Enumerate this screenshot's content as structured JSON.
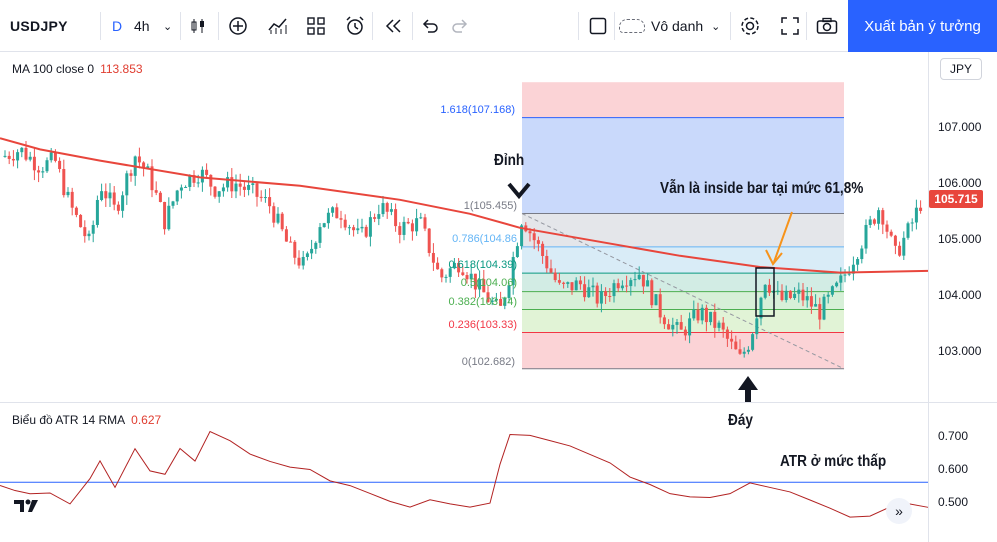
{
  "toolbar": {
    "symbol": "USDJPY",
    "interval_prefix": "D",
    "interval": "4h",
    "layout_name": "Vô danh",
    "publish_label": "Xuất bản ý tưởng",
    "icons": [
      "chevron-down-icon",
      "candles-icon",
      "plus-circle-icon",
      "indicators-icon",
      "templates-icon",
      "alert-icon",
      "replay-icon",
      "undo-icon",
      "redo-icon",
      "square-icon",
      "cloud-icon",
      "gear-icon",
      "fullscreen-icon",
      "camera-icon"
    ]
  },
  "main_legend": {
    "name": "MA 100 close 0",
    "value": "113.853"
  },
  "atr_legend": {
    "name": "Biểu đồ ATR 14 RMA",
    "value": "0.627"
  },
  "currency": "JPY",
  "current_price": "105.715",
  "colors": {
    "up": "#26a69a",
    "down": "#ef5350",
    "ma": "#e8463c",
    "atr": "#b22222",
    "accent": "#2962ff"
  },
  "annotations": {
    "top": "Đỉnh",
    "bottom": "Đáy",
    "inside_bar": "Vẫn là inside bar tại mức 61,8%",
    "atr_low": "ATR ở mức thấp"
  },
  "chart_data": [
    {
      "type": "candlestick",
      "title": "USDJPY",
      "y_ticks": [
        "107.000",
        "106.000",
        "105.000",
        "104.000",
        "103.000"
      ],
      "ylim": [
        102.2,
        107.8
      ],
      "fib_levels": [
        {
          "ratio": 1.618,
          "label": "1.618(107.168)",
          "price": 107.168,
          "color": "#2962ff"
        },
        {
          "ratio": 1,
          "label": "1(105.455)",
          "price": 105.455,
          "color": "#787b86"
        },
        {
          "ratio": 0.786,
          "label": "0.786(104.86",
          "price": 104.86,
          "color": "#64b5f6"
        },
        {
          "ratio": 0.618,
          "label": "0.618(104.39)",
          "price": 104.39,
          "color": "#089981"
        },
        {
          "ratio": 0.5,
          "label": "0.5(104.06)",
          "price": 104.06,
          "color": "#4caf50"
        },
        {
          "ratio": 0.382,
          "label": "0.382(103.74)",
          "price": 103.74,
          "color": "#4caf50"
        },
        {
          "ratio": 0.236,
          "label": "0.236(103.33)",
          "price": 103.33,
          "color": "#f23645"
        },
        {
          "ratio": 0,
          "label": "0(102.682)",
          "price": 102.682,
          "color": "#787b86"
        }
      ],
      "ma100": [
        [
          0,
          106.8
        ],
        [
          40,
          106.6
        ],
        [
          100,
          106.4
        ],
        [
          200,
          106.1
        ],
        [
          300,
          105.95
        ],
        [
          400,
          105.7
        ],
        [
          470,
          105.45
        ],
        [
          520,
          105.2
        ],
        [
          600,
          104.95
        ],
        [
          680,
          104.7
        ],
        [
          760,
          104.5
        ],
        [
          840,
          104.4
        ],
        [
          928,
          104.43
        ]
      ]
    },
    {
      "type": "line",
      "title": "Biểu đồ ATR 14 RMA",
      "y_ticks": [
        "0.700",
        "0.600",
        "0.500"
      ],
      "ylim": [
        0.42,
        0.78
      ],
      "threshold": 0.56
    }
  ]
}
